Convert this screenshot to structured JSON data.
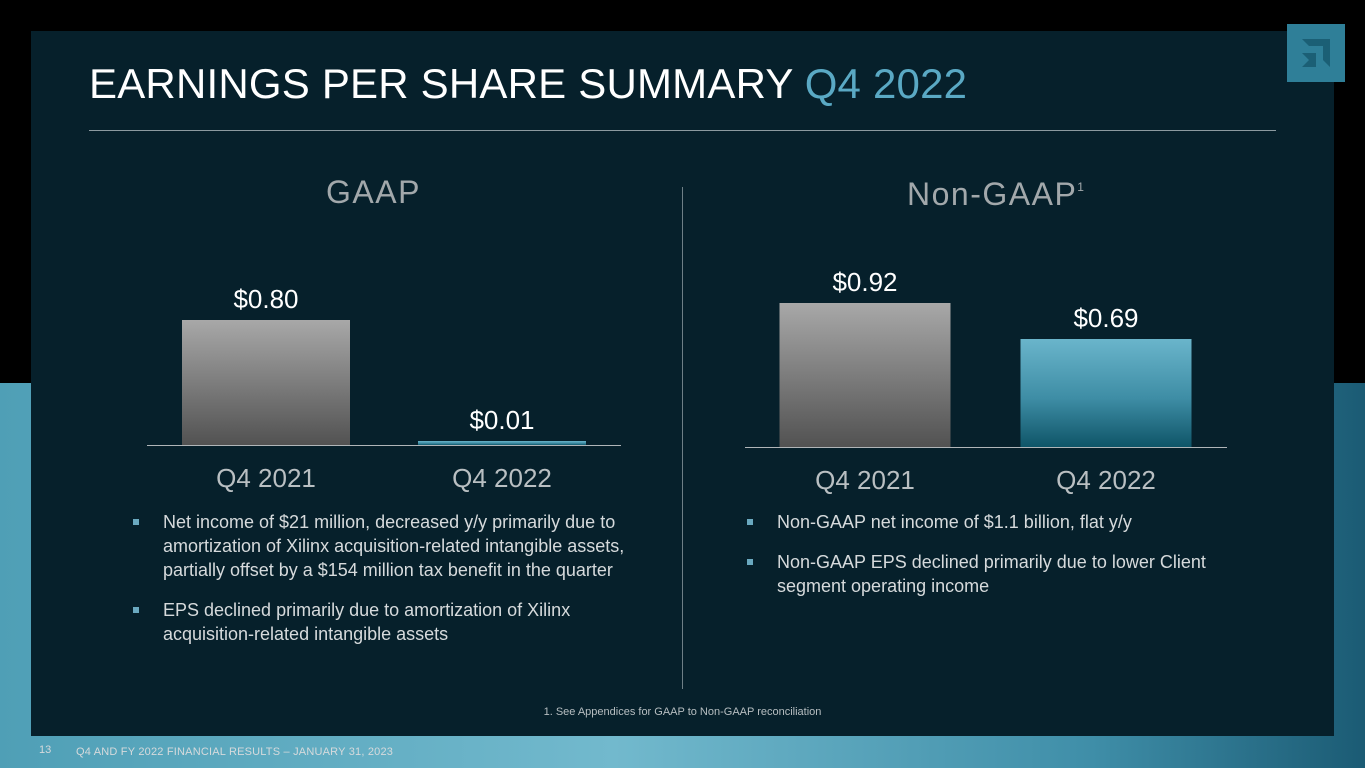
{
  "slide": {
    "title_main": "EARNINGS PER SHARE SUMMARY",
    "title_accent": "Q4 2022",
    "footnote": "1. See Appendices for GAAP to Non-GAAP reconciliation",
    "page_number": "13",
    "footer": "Q4 AND FY 2022 FINANCIAL RESULTS – JANUARY 31, 2023"
  },
  "gaap": {
    "heading": "GAAP",
    "bullets": [
      "Net income of $21 million, decreased y/y primarily due to amortization of Xilinx acquisition-related intangible assets, partially offset by a $154 million tax benefit in the quarter",
      "EPS declined primarily due to amortization of Xilinx acquisition-related intangible assets"
    ]
  },
  "non_gaap": {
    "heading": "Non-GAAP",
    "heading_sup": "1",
    "bullets": [
      "Non-GAAP net income of $1.1 billion, flat y/y",
      "Non-GAAP EPS declined primarily due to lower Client segment operating income"
    ]
  },
  "colors": {
    "gray_top": "#a8a8a8",
    "gray_bottom": "#525252",
    "teal_top": "#6ab5cb",
    "teal_bottom": "#0f5568",
    "accent": "#5aa9c4"
  },
  "chart_data": [
    {
      "type": "bar",
      "title": "GAAP",
      "categories": [
        "Q4 2021",
        "Q4 2022"
      ],
      "values": [
        0.8,
        0.01
      ],
      "labels": [
        "$0.80",
        "$0.01"
      ],
      "unit": "USD per share",
      "ylim": [
        0,
        0.8
      ]
    },
    {
      "type": "bar",
      "title": "Non-GAAP",
      "categories": [
        "Q4 2021",
        "Q4 2022"
      ],
      "values": [
        0.92,
        0.69
      ],
      "labels": [
        "$0.92",
        "$0.69"
      ],
      "unit": "USD per share",
      "ylim": [
        0,
        0.92
      ]
    }
  ]
}
